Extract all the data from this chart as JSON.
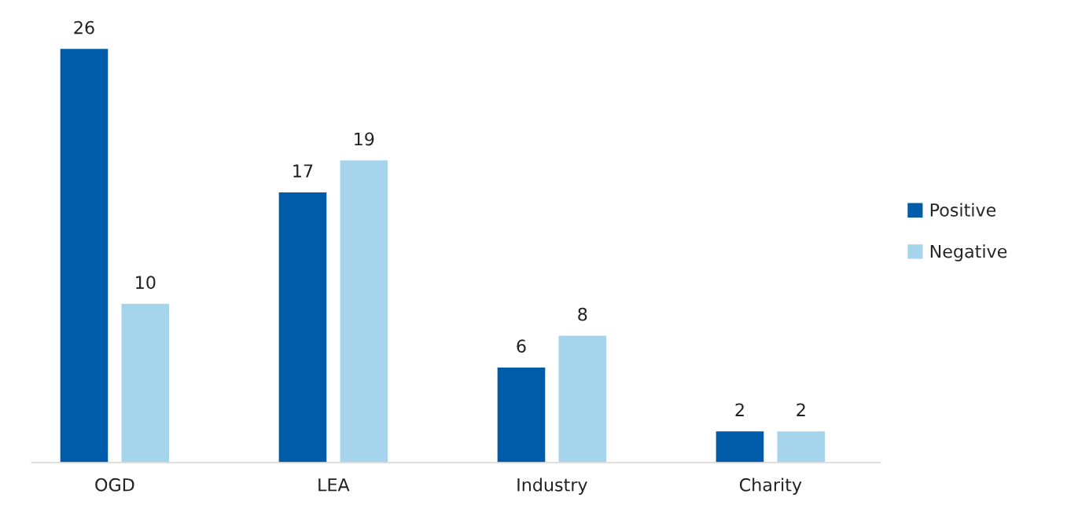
{
  "chart_data": {
    "type": "bar",
    "categories": [
      "OGD",
      "LEA",
      "Industry",
      "Charity"
    ],
    "series": [
      {
        "name": "Positive",
        "color": "#005ca8",
        "values": [
          26,
          17,
          6,
          2
        ]
      },
      {
        "name": "Negative",
        "color": "#a6d4ec",
        "values": [
          10,
          19,
          8,
          2
        ]
      }
    ],
    "data_labels": true,
    "legend": "right",
    "grid": false
  }
}
